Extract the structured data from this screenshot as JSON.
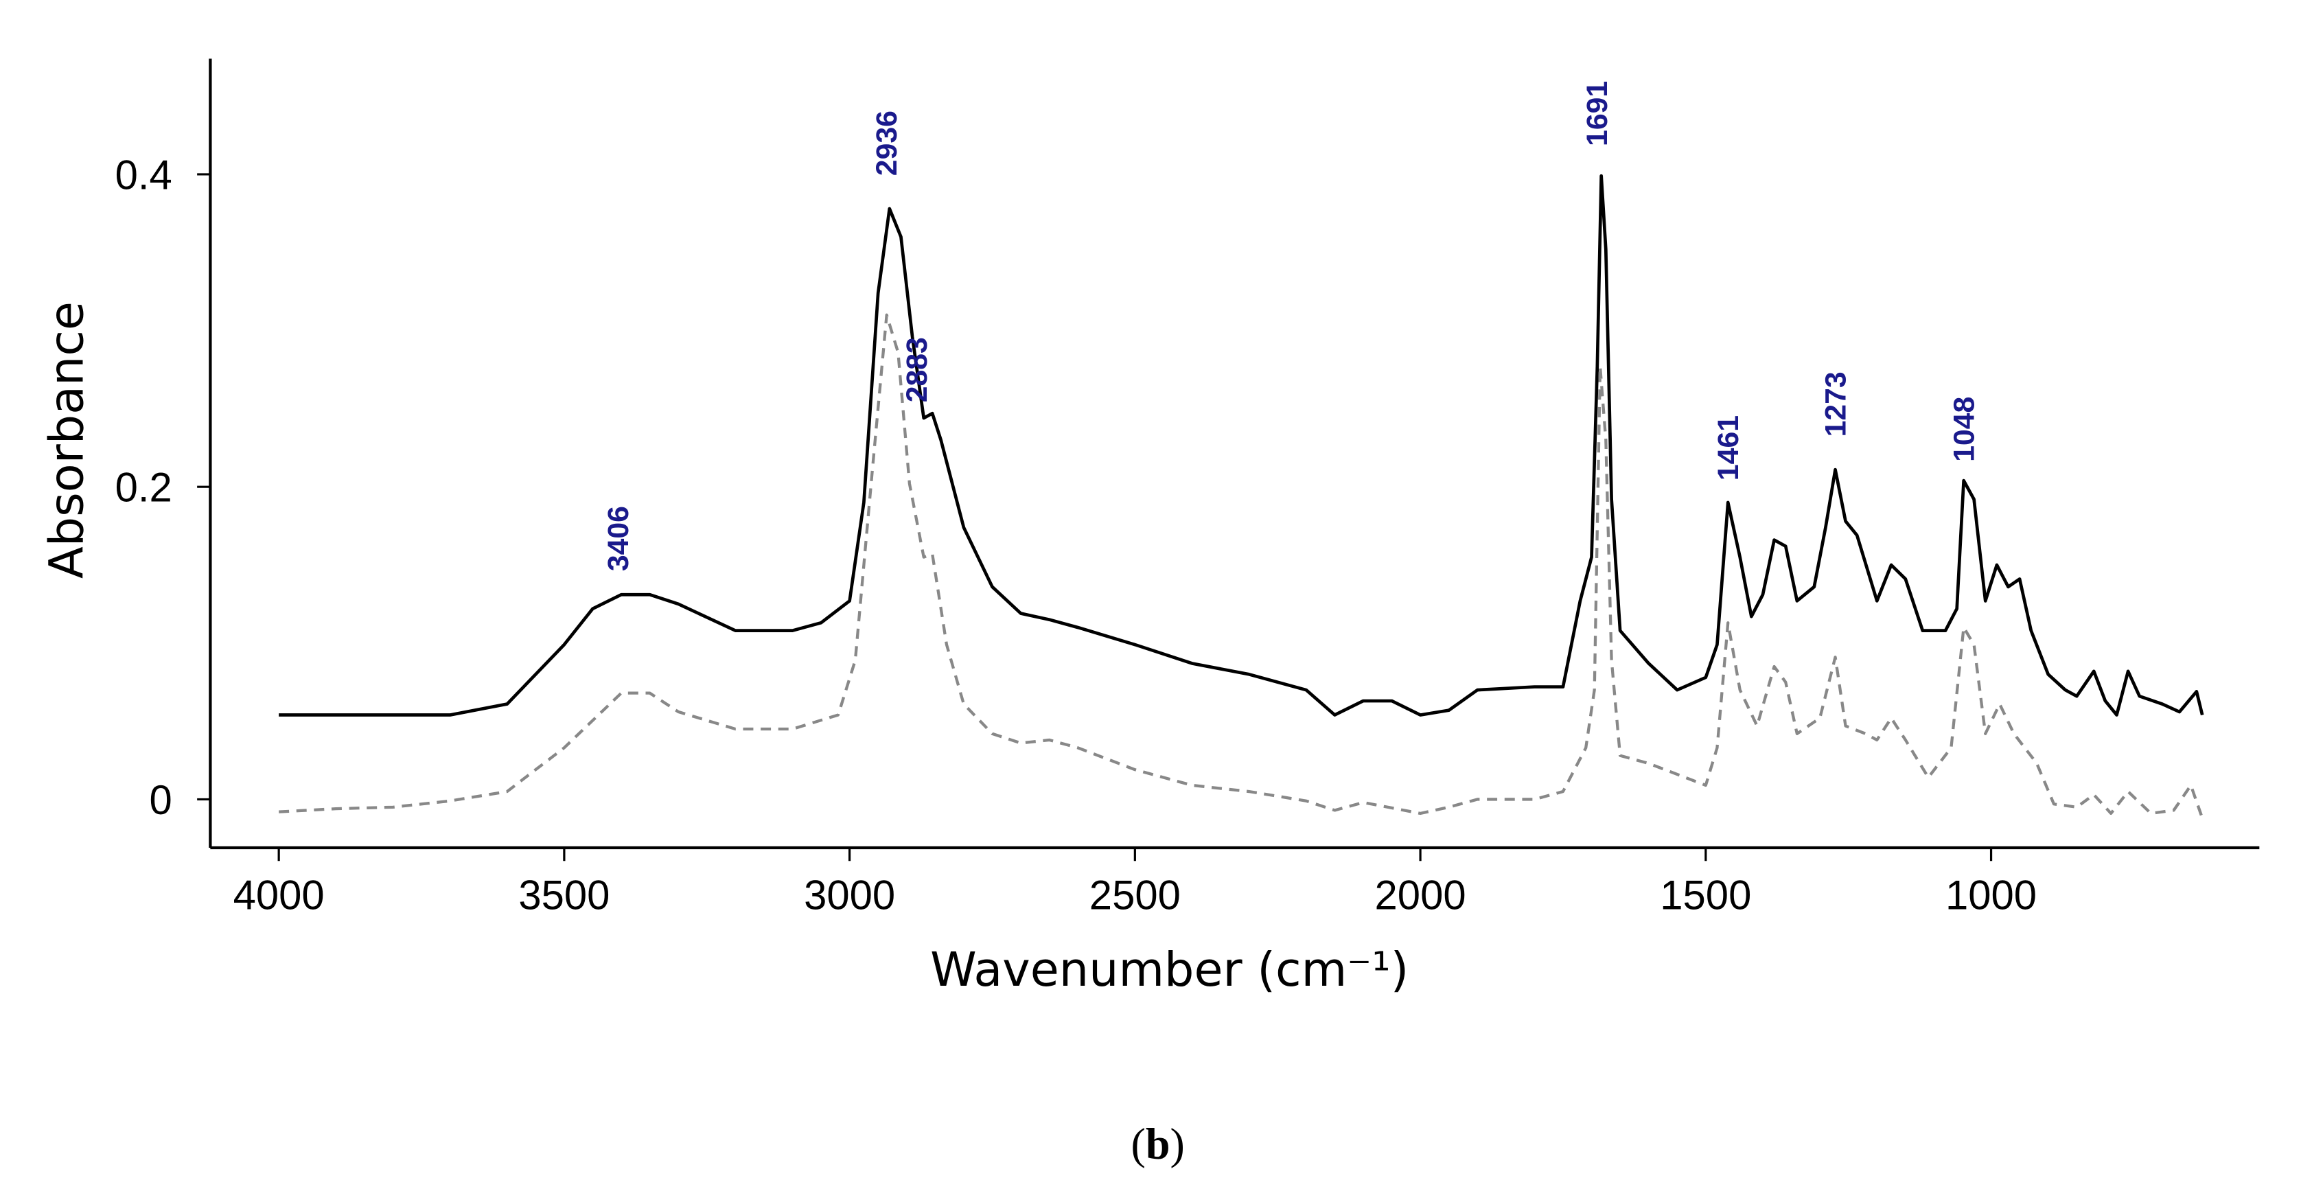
{
  "chart_data": {
    "type": "line",
    "x_label": "Wavenumber (cm⁻¹)",
    "y_label": "Absorbance",
    "caption_pre": "(",
    "caption": "b",
    "caption_post": ")",
    "xlim": [
      4120,
      530
    ],
    "ylim": [
      -0.031,
      0.474
    ],
    "xticks": [
      4000,
      3500,
      3000,
      2500,
      2000,
      1500,
      1000
    ],
    "yticks": [
      0,
      0.2,
      0.4
    ],
    "series": [
      {
        "color": "#000000",
        "dash": false,
        "x": [
          4000,
          3700,
          3600,
          3500,
          3450,
          3400,
          3350,
          3300,
          3200,
          3100,
          3050,
          3000,
          2975,
          2950,
          2930,
          2910,
          2890,
          2870,
          2855,
          2840,
          2800,
          2750,
          2700,
          2650,
          2600,
          2500,
          2400,
          2300,
          2200,
          2150,
          2100,
          2050,
          2000,
          1950,
          1900,
          1800,
          1750,
          1720,
          1700,
          1690,
          1683,
          1675,
          1665,
          1650,
          1600,
          1550,
          1500,
          1480,
          1461,
          1440,
          1420,
          1400,
          1380,
          1360,
          1340,
          1310,
          1290,
          1273,
          1255,
          1235,
          1200,
          1175,
          1150,
          1120,
          1080,
          1060,
          1048,
          1030,
          1010,
          990,
          970,
          950,
          930,
          900,
          870,
          850,
          820,
          800,
          780,
          760,
          740,
          700,
          670,
          640,
          630
        ],
        "values": [
          0.054,
          0.054,
          0.061,
          0.099,
          0.122,
          0.131,
          0.131,
          0.125,
          0.108,
          0.108,
          0.113,
          0.127,
          0.19,
          0.324,
          0.378,
          0.36,
          0.296,
          0.244,
          0.247,
          0.23,
          0.174,
          0.136,
          0.119,
          0.115,
          0.11,
          0.099,
          0.087,
          0.08,
          0.07,
          0.054,
          0.063,
          0.063,
          0.054,
          0.057,
          0.07,
          0.072,
          0.072,
          0.127,
          0.155,
          0.277,
          0.399,
          0.352,
          0.192,
          0.108,
          0.087,
          0.07,
          0.078,
          0.099,
          0.19,
          0.155,
          0.117,
          0.131,
          0.166,
          0.162,
          0.127,
          0.136,
          0.174,
          0.211,
          0.178,
          0.169,
          0.127,
          0.15,
          0.141,
          0.108,
          0.108,
          0.122,
          0.204,
          0.192,
          0.127,
          0.15,
          0.136,
          0.141,
          0.108,
          0.08,
          0.07,
          0.066,
          0.082,
          0.063,
          0.054,
          0.082,
          0.066,
          0.061,
          0.056,
          0.069,
          0.054
        ]
      },
      {
        "color": "#888888",
        "dash": true,
        "x": [
          4000,
          3900,
          3800,
          3700,
          3600,
          3500,
          3400,
          3350,
          3300,
          3200,
          3100,
          3020,
          2990,
          2960,
          2935,
          2915,
          2895,
          2870,
          2855,
          2830,
          2800,
          2750,
          2700,
          2650,
          2600,
          2500,
          2400,
          2300,
          2200,
          2150,
          2100,
          2000,
          1950,
          1900,
          1800,
          1750,
          1710,
          1695,
          1685,
          1675,
          1665,
          1650,
          1600,
          1550,
          1500,
          1480,
          1461,
          1440,
          1410,
          1380,
          1360,
          1340,
          1300,
          1273,
          1255,
          1220,
          1200,
          1175,
          1150,
          1110,
          1070,
          1048,
          1030,
          1010,
          985,
          960,
          920,
          890,
          850,
          820,
          790,
          760,
          720,
          680,
          650,
          630
        ],
        "values": [
          -0.008,
          -0.006,
          -0.005,
          -0.001,
          0.005,
          0.033,
          0.068,
          0.068,
          0.056,
          0.045,
          0.045,
          0.054,
          0.089,
          0.211,
          0.31,
          0.286,
          0.202,
          0.155,
          0.157,
          0.099,
          0.061,
          0.042,
          0.036,
          0.038,
          0.033,
          0.019,
          0.009,
          0.005,
          -0.001,
          -0.007,
          -0.002,
          -0.009,
          -0.005,
          0,
          0,
          0.005,
          0.033,
          0.07,
          0.277,
          0.23,
          0.089,
          0.028,
          0.023,
          0.016,
          0.009,
          0.033,
          0.113,
          0.07,
          0.047,
          0.085,
          0.075,
          0.042,
          0.052,
          0.091,
          0.047,
          0.042,
          0.038,
          0.052,
          0.038,
          0.014,
          0.033,
          0.11,
          0.099,
          0.042,
          0.061,
          0.042,
          0.023,
          -0.003,
          -0.005,
          0.003,
          -0.009,
          0.005,
          -0.009,
          -0.007,
          0.009,
          -0.012
        ]
      }
    ],
    "annotations": [
      {
        "text": "3406",
        "x": 3406,
        "y": 0.146
      },
      {
        "text": "2936",
        "x": 2936,
        "y": 0.399
      },
      {
        "text": "2883",
        "x": 2883,
        "y": 0.254
      },
      {
        "text": "1691",
        "x": 1691,
        "y": 0.418
      },
      {
        "text": "1461",
        "x": 1461,
        "y": 0.204
      },
      {
        "text": "1273",
        "x": 1273,
        "y": 0.232
      },
      {
        "text": "1048",
        "x": 1048,
        "y": 0.216
      }
    ],
    "annotation_color": "#1a1a8c"
  }
}
